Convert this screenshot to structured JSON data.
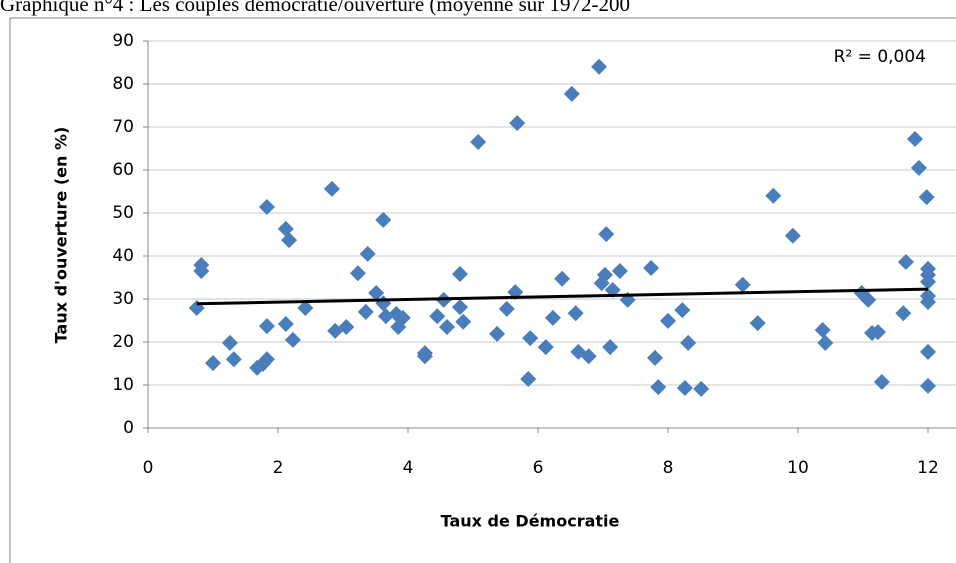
{
  "chart_data": {
    "type": "scatter",
    "title": "Graphique n°4 : Les couples démocratie/ouverture (moyenne sur 1972-200",
    "x_label": "Taux de Démocratie",
    "y_label": "Taux d'ouverture (en %)",
    "annotation": "R² = 0,004",
    "color": "#4a7ebb",
    "x": [
      0.75,
      0.82,
      0.82,
      1.0,
      1.26,
      1.32,
      1.68,
      1.83,
      1.83,
      1.83,
      1.77,
      2.12,
      2.17,
      2.12,
      2.23,
      2.42,
      2.83,
      2.88,
      3.05,
      3.23,
      3.38,
      3.35,
      3.51,
      3.62,
      3.62,
      3.66,
      3.82,
      3.85,
      3.92,
      4.26,
      4.26,
      4.45,
      4.55,
      4.6,
      4.8,
      4.8,
      4.85,
      5.08,
      5.37,
      5.52,
      5.68,
      5.65,
      5.85,
      5.88,
      6.12,
      6.23,
      6.37,
      6.52,
      6.58,
      6.62,
      6.78,
      6.94,
      6.98,
      7.03,
      7.05,
      7.11,
      7.15,
      7.26,
      7.38,
      7.74,
      7.8,
      7.85,
      8.0,
      8.22,
      8.26,
      8.31,
      8.51,
      9.15,
      9.38,
      9.62,
      9.92,
      10.38,
      10.42,
      10.98,
      11.08,
      11.14,
      11.23,
      11.29,
      11.62,
      11.66,
      11.8,
      11.86,
      11.98,
      12,
      12,
      12,
      12,
      12,
      12,
      12
    ],
    "values": [
      27.9,
      37.9,
      36.5,
      15.1,
      19.8,
      16,
      14,
      51.4,
      23.7,
      16,
      14.9,
      46.3,
      43.7,
      24.2,
      20.5,
      27.9,
      55.6,
      22.6,
      23.5,
      36,
      40.5,
      27,
      31.4,
      48.4,
      29,
      26,
      26.5,
      23.5,
      25.6,
      17.4,
      16.7,
      26,
      29.8,
      23.5,
      35.8,
      28.1,
      24.7,
      66.5,
      21.9,
      27.7,
      70.9,
      31.6,
      11.4,
      20.9,
      18.8,
      25.6,
      34.7,
      77.7,
      26.7,
      17.7,
      16.7,
      84,
      33.7,
      35.6,
      45.1,
      18.8,
      32.1,
      36.5,
      29.8,
      37.2,
      16.3,
      9.5,
      24.9,
      27.4,
      9.3,
      19.8,
      9.1,
      33.3,
      24.4,
      54,
      44.7,
      22.8,
      19.8,
      31.4,
      29.8,
      22.1,
      22.3,
      10.7,
      26.7,
      38.6,
      67.2,
      60.5,
      53.7,
      37,
      35.6,
      34,
      30.7,
      29.3,
      17.7,
      9.8
    ],
    "trendline": {
      "x": [
        0.75,
        12
      ],
      "values": [
        28.9,
        32.3
      ],
      "color": "#000000"
    },
    "xlim": [
      0,
      12
    ],
    "xticks": [
      0,
      2,
      4,
      6,
      8,
      10,
      12
    ],
    "ylim": [
      0,
      90
    ],
    "yticks": [
      0,
      10,
      20,
      30,
      40,
      50,
      60,
      70,
      80,
      90
    ],
    "grid": true
  }
}
